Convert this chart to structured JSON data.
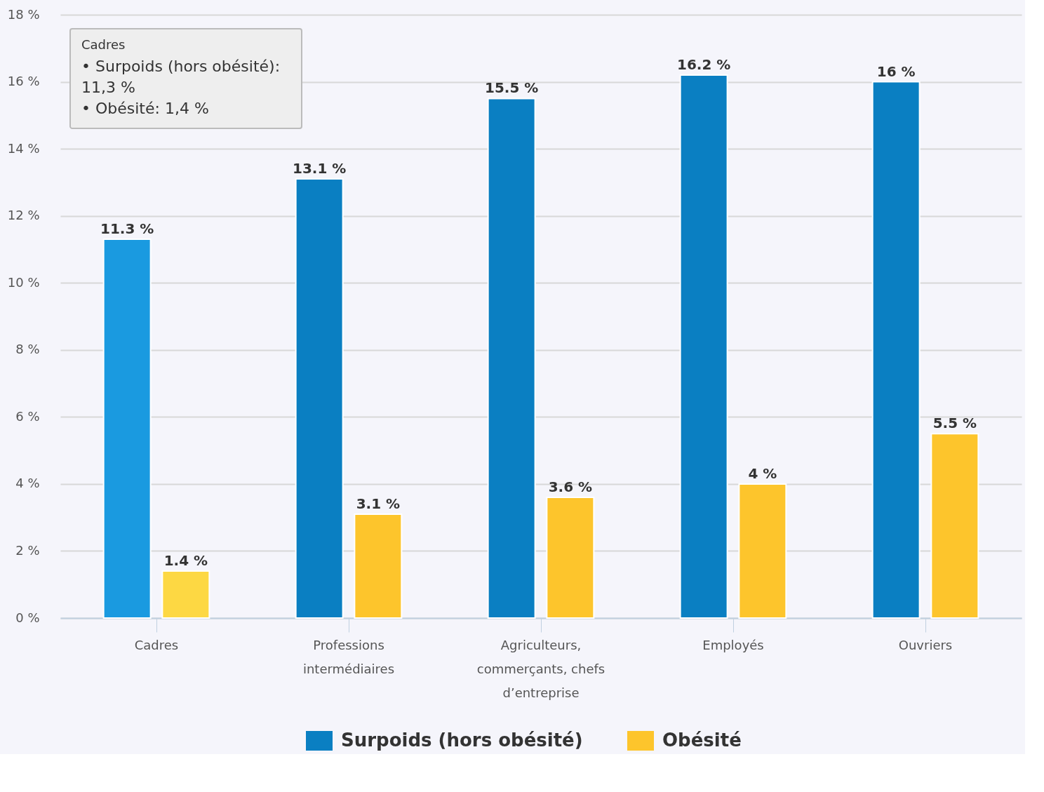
{
  "chart_data": {
    "type": "bar",
    "categories": [
      "Cadres",
      "Professions intermédiaires",
      "Agriculteurs, commerçants, chefs d’entreprise",
      "Employés",
      "Ouvriers"
    ],
    "series": [
      {
        "name": "Surpoids (hors obésité)",
        "color": "#0a7fc2",
        "colors": [
          "#1a9ae0",
          "#0a7fc2",
          "#0a7fc2",
          "#0a7fc2",
          "#0a7fc2"
        ],
        "values": [
          11.3,
          13.1,
          15.5,
          16.2,
          16
        ],
        "value_labels": [
          "11.3 %",
          "13.1 %",
          "15.5 %",
          "16.2 %",
          "16 %"
        ]
      },
      {
        "name": "Obésité",
        "color": "#fdc52c",
        "colors": [
          "#fdd843",
          "#fdc52c",
          "#fdc52c",
          "#fdc52c",
          "#fdc52c"
        ],
        "values": [
          1.4,
          3.1,
          3.6,
          4,
          5.5
        ],
        "value_labels": [
          "1.4 %",
          "3.1 %",
          "3.6 %",
          "4 %",
          "5.5 %"
        ]
      }
    ],
    "ylim": [
      0,
      18
    ],
    "yticks": [
      {
        "value": 0,
        "label": "0 %"
      },
      {
        "value": 2,
        "label": "2 %"
      },
      {
        "value": 4,
        "label": "4 %"
      },
      {
        "value": 6,
        "label": "6 %"
      },
      {
        "value": 8,
        "label": "8 %"
      },
      {
        "value": 10,
        "label": "10 %"
      },
      {
        "value": 12,
        "label": "12 %"
      },
      {
        "value": 14,
        "label": "14 %"
      },
      {
        "value": 16,
        "label": "16 %"
      },
      {
        "value": 18,
        "label": "18 %"
      }
    ],
    "grid": "y",
    "legend": "bottom",
    "annotations": [
      "Cadres",
      "• Surpoids (hors obésité):",
      "11,3 %",
      "• Obésité: 1,4 %"
    ]
  }
}
